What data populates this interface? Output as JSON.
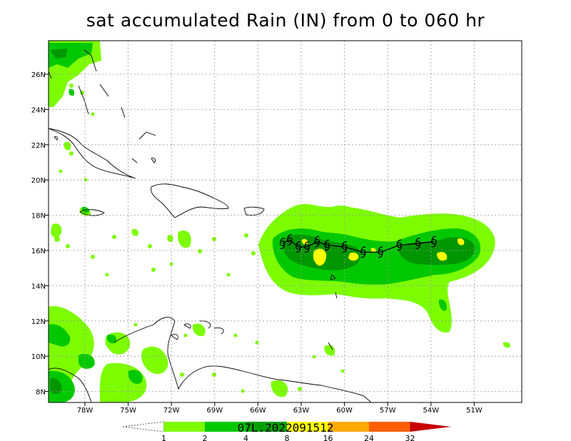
{
  "title": "sat accumulated Rain (IN) from 0 to 060 hr",
  "storm_label": "07L.2022091512",
  "lat_labels": [
    "26N",
    "24N",
    "22N",
    "20N",
    "18N",
    "16N",
    "14N",
    "12N",
    "10N",
    "8N"
  ],
  "lon_labels": [
    "78W",
    "75W",
    "72W",
    "69W",
    "66W",
    "63W",
    "60W",
    "57W",
    "54W",
    "51W"
  ],
  "colorbar": {
    "labels": [
      "1",
      "2",
      "4",
      "8",
      "16",
      "24",
      "32"
    ],
    "colors": [
      "#ffffff",
      "#7dfc00",
      "#00c800",
      "#00a000",
      "#ffff00",
      "#ffaa00",
      "#ff5f00",
      "#c80000"
    ]
  },
  "chart_data": {
    "type": "heatmap",
    "title": "sat accumulated Rain (IN) from 0 to 060 hr",
    "units": "IN",
    "lon_range": [
      -80.5,
      -47
    ],
    "lat_range": [
      7.5,
      28
    ],
    "levels": [
      1,
      2,
      4,
      8,
      16,
      24,
      32
    ],
    "track_points": [
      {
        "lon": -64.3,
        "lat": 16.4
      },
      {
        "lon": -63.8,
        "lat": 16.6
      },
      {
        "lon": -63.2,
        "lat": 16.2
      },
      {
        "lon": -62.6,
        "lat": 16.2
      },
      {
        "lon": -61.9,
        "lat": 16.5
      },
      {
        "lon": -61.2,
        "lat": 16.3
      },
      {
        "lon": -60.0,
        "lat": 16.2
      },
      {
        "lon": -58.7,
        "lat": 15.9
      },
      {
        "lon": -57.5,
        "lat": 15.9
      },
      {
        "lon": -56.2,
        "lat": 16.3
      },
      {
        "lon": -54.9,
        "lat": 16.4
      },
      {
        "lon": -53.8,
        "lat": 16.5
      }
    ]
  }
}
